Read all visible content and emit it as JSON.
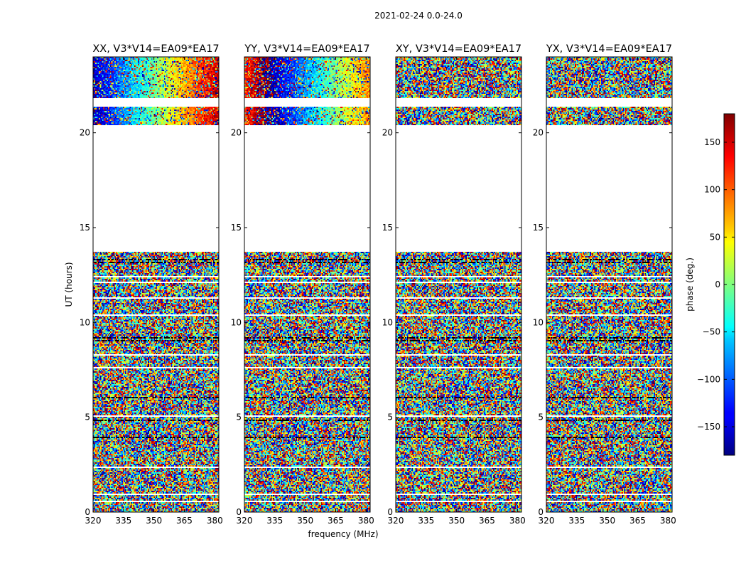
{
  "chart_data": {
    "type": "heatmap",
    "suptitle": "2021-02-24 0.0-24.0",
    "xlabel": "frequency (MHz)",
    "ylabel": "UT (hours)",
    "xlim": [
      320,
      382
    ],
    "ylim": [
      0,
      24
    ],
    "xticks": [
      "320",
      "335",
      "350",
      "365",
      "380"
    ],
    "yticks": [
      "0",
      "5",
      "10",
      "15",
      "20"
    ],
    "panels": [
      {
        "title": "XX, V3*V14=EA09*EA17",
        "pol": "XX"
      },
      {
        "title": "YY, V3*V14=EA09*EA17",
        "pol": "YY"
      },
      {
        "title": "XY, V3*V14=EA09*EA17",
        "pol": "XY"
      },
      {
        "title": "YX, V3*V14=EA09*EA17",
        "pol": "YX"
      }
    ],
    "data_gaps_hours": [
      [
        13.7,
        20.4
      ],
      [
        21.4,
        21.8
      ]
    ],
    "colorbar": {
      "label": "phase (deg.)",
      "range": [
        -180,
        180
      ],
      "ticks": [
        "150",
        "100",
        "50",
        "0",
        "−50",
        "−100",
        "−150"
      ],
      "colormap": "jet"
    }
  }
}
